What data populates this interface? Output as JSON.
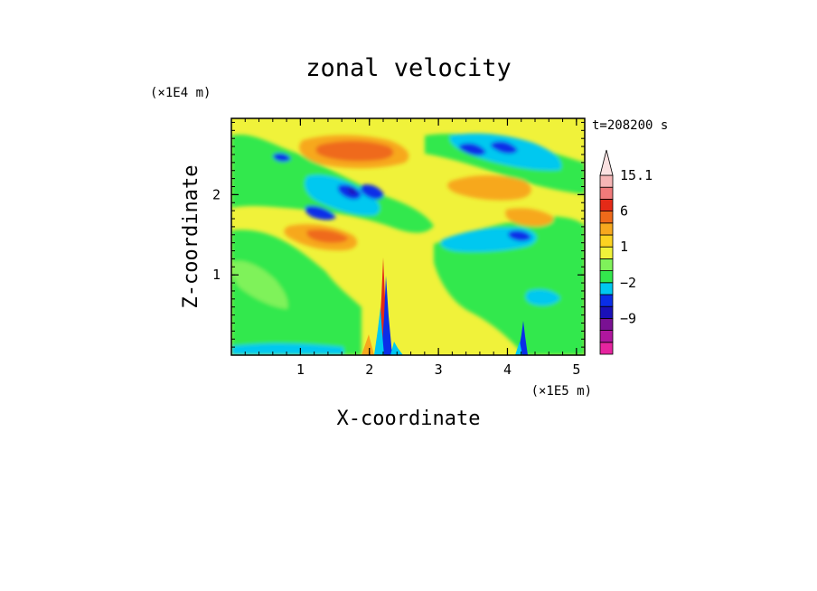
{
  "chart_data": {
    "type": "heatmap",
    "title": "zonal velocity",
    "xlabel": "X-coordinate",
    "ylabel": "Z-coordinate",
    "x_unit": "(×1E5 m)",
    "y_unit": "(×1E4 m)",
    "time_label": "t=208200 s",
    "xlim": [
      0,
      5.12
    ],
    "ylim": [
      0,
      2.95
    ],
    "x_ticks": [
      1,
      2,
      3,
      4,
      5
    ],
    "y_ticks": [
      1,
      2
    ],
    "colorbar": {
      "tick_labels": [
        "15.1",
        "6",
        "1",
        "−2",
        "−9"
      ],
      "tick_values": [
        15.1,
        6,
        1,
        -2,
        -9
      ],
      "levels": [
        -16,
        -12,
        -9,
        -6,
        -3,
        -2,
        -1,
        0,
        1,
        2,
        4,
        6,
        9,
        12,
        15.1
      ],
      "colors": [
        "#e6249f",
        "#b0169e",
        "#7a1193",
        "#1a10b8",
        "#0a2ee8",
        "#00c8f0",
        "#33e84d",
        "#7ff25a",
        "#f0f23a",
        "#fcd321",
        "#f7a81e",
        "#ef6a1a",
        "#e42a17",
        "#f17a7a",
        "#f6b5b5",
        "#fbe1e1"
      ]
    },
    "features": [
      {
        "kind": "strong_positive",
        "x": [
          2.15,
          2.3
        ],
        "y": [
          0.0,
          1.25
        ]
      },
      {
        "kind": "negative_core",
        "x": [
          2.22,
          2.3
        ],
        "y": [
          0.0,
          0.7
        ]
      },
      {
        "kind": "negative_core",
        "x": [
          4.2,
          4.26
        ],
        "y": [
          0.0,
          0.4
        ]
      },
      {
        "kind": "positive_band",
        "x": [
          1.2,
          2.1
        ],
        "y": [
          2.45,
          2.65
        ]
      },
      {
        "kind": "negative_band",
        "x": [
          1.3,
          2.2
        ],
        "y": [
          1.95,
          2.25
        ]
      },
      {
        "kind": "negative_band",
        "x": [
          3.4,
          4.6
        ],
        "y": [
          2.4,
          2.8
        ]
      },
      {
        "kind": "negative_band",
        "x": [
          3.2,
          4.3
        ],
        "y": [
          1.3,
          1.5
        ]
      }
    ]
  }
}
